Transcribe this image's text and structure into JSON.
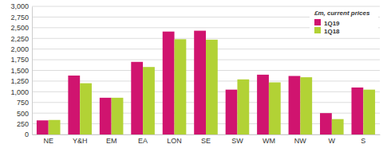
{
  "chart_data": {
    "type": "bar",
    "annotation": "£m, current prices",
    "categories": [
      "NE",
      "Y&H",
      "EM",
      "EA",
      "LON",
      "SE",
      "SW",
      "WM",
      "NW",
      "W",
      "S"
    ],
    "series": [
      {
        "name": "1Q19",
        "color": "#d0146f",
        "values": [
          330,
          1380,
          860,
          1700,
          2410,
          2430,
          1050,
          1400,
          1370,
          500,
          1100
        ]
      },
      {
        "name": "1Q18",
        "color": "#b2d235",
        "values": [
          340,
          1200,
          860,
          1580,
          2230,
          2220,
          1290,
          1220,
          1340,
          360,
          1050
        ]
      }
    ],
    "ylim": [
      0,
      3000
    ],
    "yticks": [
      0,
      250,
      500,
      750,
      {
        "value": 1000,
        "label": "1,000"
      },
      {
        "value": 1250,
        "label": "1,250"
      },
      {
        "value": 1500,
        "label": "1,500"
      },
      {
        "value": 1750,
        "label": "1,750"
      },
      {
        "value": 2000,
        "label": "2,000"
      },
      {
        "value": 2250,
        "label": "2,250"
      },
      {
        "value": 2500,
        "label": "2,500"
      },
      {
        "value": 2750,
        "label": "2,750"
      },
      {
        "value": 3000,
        "label": "3,000"
      }
    ],
    "grid": true,
    "legend": "top-right"
  }
}
